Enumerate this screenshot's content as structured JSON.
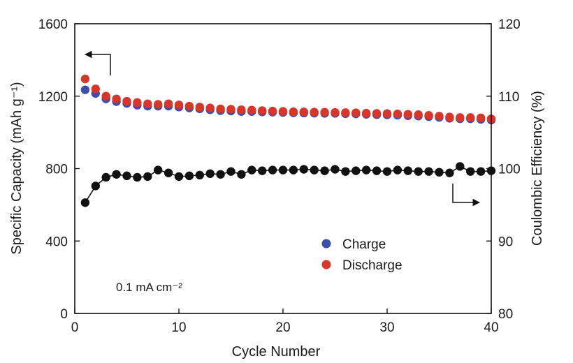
{
  "chart_data": {
    "type": "scatter",
    "xlabel": "Cycle Number",
    "ylabel_left": "Specific Capacity (mAh g⁻¹)",
    "ylabel_right": "Coulombic Efficiency (%)",
    "xlim": [
      0,
      40
    ],
    "ylim_left": [
      0,
      1600
    ],
    "ylim_right": [
      80,
      120
    ],
    "xticks": [
      "0",
      "10",
      "20",
      "30",
      "40"
    ],
    "yticks_left": [
      "0",
      "400",
      "800",
      "1200",
      "1600"
    ],
    "yticks_right": [
      "80",
      "90",
      "100",
      "110",
      "120"
    ],
    "x": [
      1,
      2,
      3,
      4,
      5,
      6,
      7,
      8,
      9,
      10,
      11,
      12,
      13,
      14,
      15,
      16,
      17,
      18,
      19,
      20,
      21,
      22,
      23,
      24,
      25,
      26,
      27,
      28,
      29,
      30,
      31,
      32,
      33,
      34,
      35,
      36,
      37,
      38,
      39,
      40
    ],
    "series": [
      {
        "name": "Charge",
        "axis": "left",
        "color": "#3b4fa8",
        "values": [
          1235,
          1215,
          1185,
          1170,
          1160,
          1150,
          1145,
          1145,
          1145,
          1140,
          1135,
          1130,
          1125,
          1120,
          1118,
          1115,
          1115,
          1113,
          1112,
          1110,
          1108,
          1107,
          1106,
          1105,
          1105,
          1103,
          1102,
          1100,
          1098,
          1097,
          1095,
          1092,
          1090,
          1087,
          1083,
          1078,
          1075,
          1075,
          1072,
          1068
        ]
      },
      {
        "name": "Discharge",
        "axis": "left",
        "color": "#d8362b",
        "values": [
          1295,
          1240,
          1200,
          1185,
          1172,
          1165,
          1158,
          1155,
          1158,
          1152,
          1145,
          1140,
          1135,
          1130,
          1128,
          1125,
          1123,
          1120,
          1118,
          1116,
          1114,
          1113,
          1112,
          1111,
          1110,
          1109,
          1108,
          1106,
          1105,
          1104,
          1102,
          1100,
          1098,
          1094,
          1090,
          1085,
          1082,
          1082,
          1080,
          1075
        ]
      },
      {
        "name": "",
        "axis": "right",
        "color": "#111111",
        "values": [
          95.3,
          97.6,
          98.8,
          99.2,
          99.0,
          98.8,
          98.9,
          99.8,
          99.4,
          98.9,
          99.0,
          99.1,
          99.3,
          99.2,
          99.6,
          99.2,
          99.8,
          99.7,
          99.8,
          99.8,
          99.8,
          99.9,
          99.8,
          99.7,
          99.9,
          99.6,
          99.7,
          99.8,
          99.7,
          99.6,
          99.8,
          99.7,
          99.6,
          99.6,
          99.5,
          99.4,
          100.3,
          99.6,
          99.6,
          99.7
        ]
      }
    ],
    "legend": {
      "position": "center-right",
      "entries": [
        {
          "label": "Charge",
          "color": "#3b4fa8"
        },
        {
          "label": "Discharge",
          "color": "#d8362b"
        }
      ]
    },
    "annotation": "0.1 mA cm⁻²",
    "grid": false
  }
}
